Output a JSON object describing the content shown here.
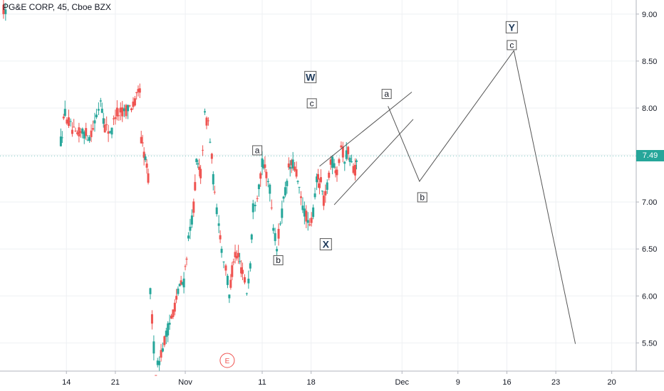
{
  "header": {
    "title": "PG&E CORP, 45, Cboe BZX"
  },
  "colors": {
    "up": "#26a69a",
    "down": "#ef5350",
    "grid": "#eef0f3",
    "axis": "#b2b5be",
    "text": "#131722",
    "event": "#ef5350"
  },
  "chart_data": {
    "type": "candlestick",
    "title": "PG&E CORP, 45, Cboe BZX",
    "ylim": [
      5.2,
      9.15
    ],
    "y_ticks": [
      5.5,
      6.0,
      6.5,
      7.0,
      7.5,
      8.0,
      8.5,
      9.0
    ],
    "y_tick_labels": [
      "5.50",
      "6.00",
      "6.50",
      "7.00",
      "7.50",
      "8.00",
      "8.50",
      "9.00"
    ],
    "x_ticks": [
      {
        "label": "14",
        "t": 14
      },
      {
        "label": "21",
        "t": 21
      },
      {
        "label": "Nov",
        "t": 31
      },
      {
        "label": "11",
        "t": 42
      },
      {
        "label": "18",
        "t": 49
      },
      {
        "label": "Dec",
        "t": 62
      },
      {
        "label": "9",
        "t": 70
      },
      {
        "label": "16",
        "t": 77
      },
      {
        "label": "23",
        "t": 84
      },
      {
        "label": "20",
        "t": 92
      }
    ],
    "x_range": [
      4.5,
      95.5
    ],
    "last_price": 7.49,
    "last_price_label": "7.49",
    "event_marker": {
      "label": "E",
      "t": 37
    },
    "price_anchors": [
      [
        13.2,
        7.65
      ],
      [
        13.8,
        7.95
      ],
      [
        14.6,
        7.8
      ],
      [
        15.3,
        7.7
      ],
      [
        16.3,
        7.75
      ],
      [
        17.3,
        7.7
      ],
      [
        18.3,
        7.9
      ],
      [
        18.9,
        8.1
      ],
      [
        19.5,
        7.8
      ],
      [
        20.5,
        7.75
      ],
      [
        21.0,
        7.95
      ],
      [
        22.0,
        7.95
      ],
      [
        22.8,
        8.0
      ],
      [
        23.8,
        8.05
      ],
      [
        24.5,
        8.2
      ],
      [
        24.7,
        7.65
      ],
      [
        25.3,
        7.45
      ],
      [
        25.7,
        7.25
      ],
      [
        26.0,
        6.05
      ],
      [
        26.5,
        5.45
      ],
      [
        26.8,
        5.2
      ],
      [
        29.5,
        5.9
      ],
      [
        30.2,
        6.1
      ],
      [
        30.8,
        6.15
      ],
      [
        31.2,
        6.45
      ],
      [
        31.7,
        6.7
      ],
      [
        32.2,
        6.95
      ],
      [
        32.6,
        7.4
      ],
      [
        33.2,
        7.3
      ],
      [
        33.8,
        7.9
      ],
      [
        34.3,
        7.85
      ],
      [
        34.8,
        7.45
      ],
      [
        35.2,
        7.05
      ],
      [
        35.8,
        6.8
      ],
      [
        36.2,
        6.5
      ],
      [
        36.8,
        6.3
      ],
      [
        37.3,
        6.0
      ],
      [
        37.9,
        6.4
      ],
      [
        38.6,
        6.4
      ],
      [
        39.2,
        6.25
      ],
      [
        39.8,
        6.05
      ],
      [
        40.3,
        6.35
      ],
      [
        40.7,
        6.95
      ],
      [
        41.3,
        7.1
      ],
      [
        42.0,
        7.4
      ],
      [
        42.6,
        7.3
      ],
      [
        43.1,
        7.15
      ],
      [
        43.6,
        6.75
      ],
      [
        44.1,
        6.5
      ],
      [
        44.6,
        6.8
      ],
      [
        45.3,
        7.1
      ],
      [
        45.8,
        7.35
      ],
      [
        46.4,
        7.4
      ],
      [
        46.9,
        7.3
      ],
      [
        47.3,
        7.1
      ],
      [
        47.8,
        6.95
      ],
      [
        48.3,
        6.85
      ],
      [
        48.8,
        6.7
      ],
      [
        49.3,
        6.9
      ],
      [
        49.8,
        7.25
      ],
      [
        50.4,
        7.2
      ],
      [
        50.8,
        7.0
      ],
      [
        51.3,
        7.15
      ],
      [
        51.8,
        7.45
      ],
      [
        52.3,
        7.4
      ],
      [
        52.7,
        7.35
      ],
      [
        53.3,
        7.6
      ],
      [
        53.8,
        7.45
      ],
      [
        54.3,
        7.55
      ],
      [
        54.8,
        7.4
      ],
      [
        55.3,
        7.35
      ],
      [
        55.7,
        7.45
      ]
    ],
    "wave_labels": [
      {
        "label": "W",
        "t": 48.9,
        "y": 8.33,
        "bold": true,
        "large": true
      },
      {
        "label": "c",
        "t": 49.1,
        "y": 8.05,
        "bold": false,
        "large": false
      },
      {
        "label": "a",
        "t": 41.3,
        "y": 7.55,
        "bold": false,
        "large": false
      },
      {
        "label": "b",
        "t": 44.3,
        "y": 6.38,
        "bold": false,
        "large": false
      },
      {
        "label": "X",
        "t": 51.1,
        "y": 6.55,
        "bold": true,
        "large": true
      },
      {
        "label": "a",
        "t": 59.8,
        "y": 8.15,
        "bold": false,
        "large": false
      },
      {
        "label": "b",
        "t": 64.9,
        "y": 7.05,
        "bold": false,
        "large": false
      },
      {
        "label": "Y",
        "t": 77.7,
        "y": 8.86,
        "bold": true,
        "large": true
      },
      {
        "label": "c",
        "t": 77.7,
        "y": 8.67,
        "bold": false,
        "large": false
      }
    ],
    "channel_lines": [
      {
        "from": [
          50.2,
          7.38
        ],
        "to": [
          63.4,
          8.17
        ]
      },
      {
        "from": [
          52.3,
          6.97
        ],
        "to": [
          63.6,
          7.88
        ]
      }
    ],
    "projection_path": [
      [
        60.0,
        8.02
      ],
      [
        64.5,
        7.22
      ],
      [
        78.0,
        8.61
      ],
      [
        86.8,
        5.49
      ]
    ]
  }
}
